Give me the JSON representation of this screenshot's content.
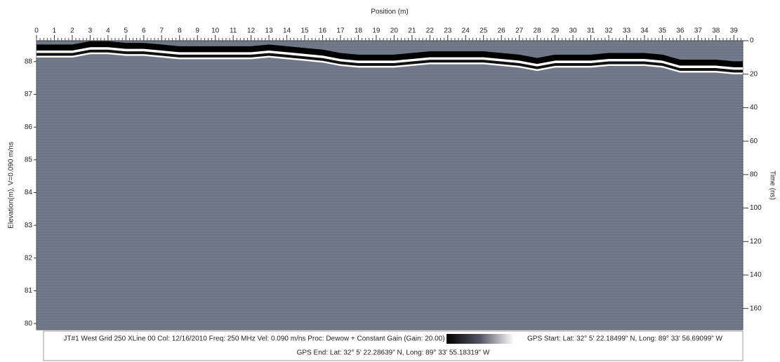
{
  "chart_data": {
    "type": "radargram",
    "title": "Position (m)",
    "y_label": "Elevation(m), V=0.090 m/ns",
    "y2_label": "Time (ns)",
    "background": "#6e7787",
    "x": [
      0,
      1,
      2,
      3,
      4,
      5,
      6,
      7,
      8,
      9,
      10,
      11,
      12,
      13,
      14,
      15,
      16,
      17,
      18,
      19,
      20,
      21,
      22,
      23,
      24,
      25,
      26,
      27,
      28,
      29,
      30,
      31,
      32,
      33,
      34,
      35,
      36,
      37,
      38,
      39
    ],
    "series": [
      {
        "axis": "y2",
        "color": "#000000",
        "values": [
          4,
          4,
          4,
          2,
          2,
          3,
          3,
          4,
          5,
          5,
          5,
          5,
          5,
          4,
          5,
          6,
          7,
          9,
          10,
          10,
          10,
          9,
          8,
          8,
          8,
          8,
          9,
          10,
          12,
          10,
          10,
          10,
          9,
          9,
          9,
          10,
          13,
          13,
          13,
          14
        ]
      }
    ],
    "xlim": [
      0,
      39.5
    ],
    "xticks": [
      0,
      1,
      2,
      3,
      4,
      5,
      6,
      7,
      8,
      9,
      10,
      11,
      12,
      13,
      14,
      15,
      16,
      17,
      18,
      19,
      20,
      21,
      22,
      23,
      24,
      25,
      26,
      27,
      28,
      29,
      30,
      31,
      32,
      33,
      34,
      35,
      36,
      37,
      38,
      39
    ],
    "ylim": [
      79.81,
      88.64
    ],
    "yticks": [
      80,
      81,
      82,
      83,
      84,
      85,
      86,
      87,
      88
    ],
    "y2lim": [
      0,
      172.7
    ],
    "y2ticks": [
      0,
      20,
      40,
      60,
      80,
      100,
      120,
      140,
      160
    ],
    "footer": {
      "line1": "JT#1 West Grid 250 XLine 00  Col: 12/16/2010 Freq: 250 MHz Vel: 0.090 m/ns Proc: Dewow + Constant Gain (Gain: 20.00)",
      "gps_start": "GPS Start: Lat: 32° 5' 22.18499\" N, Long: 89° 33' 56.69099\" W",
      "gps_end": "GPS End: Lat: 32° 5' 22.28639\" N, Long: 89° 33' 55.18319\" W"
    }
  }
}
